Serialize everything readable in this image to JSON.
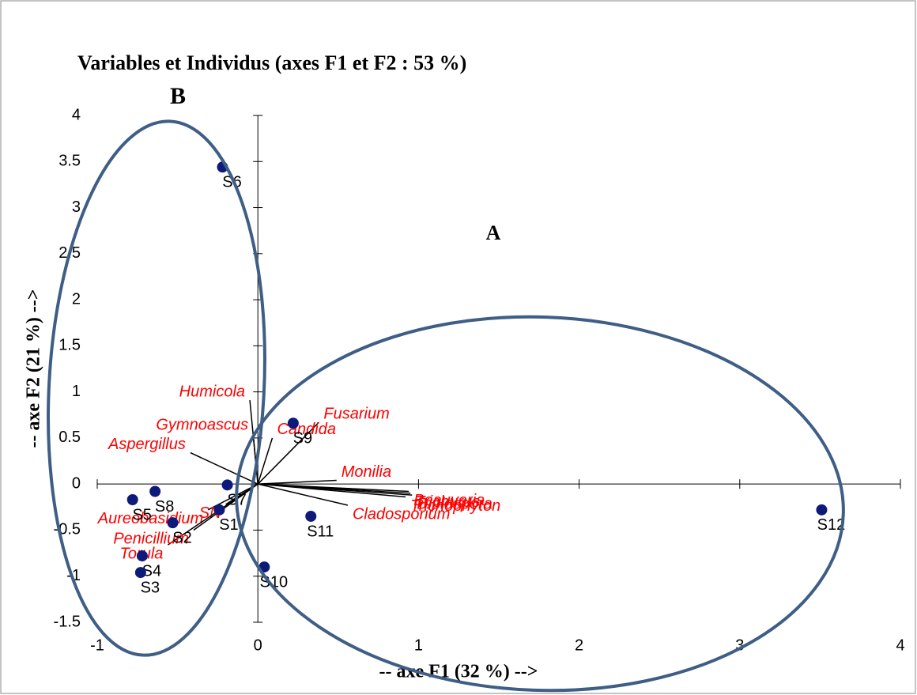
{
  "chart_data": {
    "type": "scatter",
    "title": "Variables et Individus (axes F1 et F2 : 53 %)",
    "xlabel": "-- axe F1 (32 %) -->",
    "ylabel": "-- axe F2 (21 %) -->",
    "xlim": [
      -1,
      4
    ],
    "ylim": [
      -1.5,
      4
    ],
    "xticks": [
      -1,
      0,
      1,
      2,
      3,
      4
    ],
    "yticks": [
      -1.5,
      -1,
      -0.5,
      0,
      0.5,
      1,
      1.5,
      2,
      2.5,
      3,
      3.5,
      4
    ],
    "points": {
      "color": "#0d1a7a",
      "labels": [
        "S6",
        "S9",
        "S7",
        "S8",
        "S5",
        "S1",
        "S2",
        "S4",
        "S3",
        "S11",
        "S10",
        "S12"
      ],
      "x": [
        -0.22,
        0.22,
        -0.19,
        -0.64,
        -0.78,
        -0.24,
        -0.53,
        -0.72,
        -0.73,
        0.33,
        0.04,
        3.51
      ],
      "y": [
        3.44,
        0.66,
        -0.01,
        -0.08,
        -0.17,
        -0.28,
        -0.42,
        -0.78,
        -0.96,
        -0.35,
        -0.9,
        -0.28
      ]
    },
    "vectors": {
      "color": "#ff0000",
      "labels": [
        "Gymnoascus",
        "Humicola",
        "Fusarium",
        "Candida",
        "Aspergillus",
        "Monilia",
        "Beauveria",
        "Trichurus",
        "Diplospora",
        "Trichophyton",
        "Cladosporium",
        "Aureobasidium",
        "SN",
        "Torula",
        "Penicillium"
      ],
      "x": [
        -0.03,
        -0.05,
        0.38,
        0.09,
        -0.42,
        0.49,
        0.94,
        0.95,
        0.96,
        0.92,
        0.56,
        -0.31,
        -0.2,
        -0.56,
        -0.4
      ],
      "y": [
        0.55,
        0.91,
        0.67,
        0.5,
        0.34,
        0.04,
        -0.08,
        -0.1,
        -0.12,
        -0.14,
        -0.23,
        -0.28,
        -0.22,
        -0.66,
        -0.5
      ]
    },
    "annotations": [
      "A",
      "B"
    ]
  }
}
